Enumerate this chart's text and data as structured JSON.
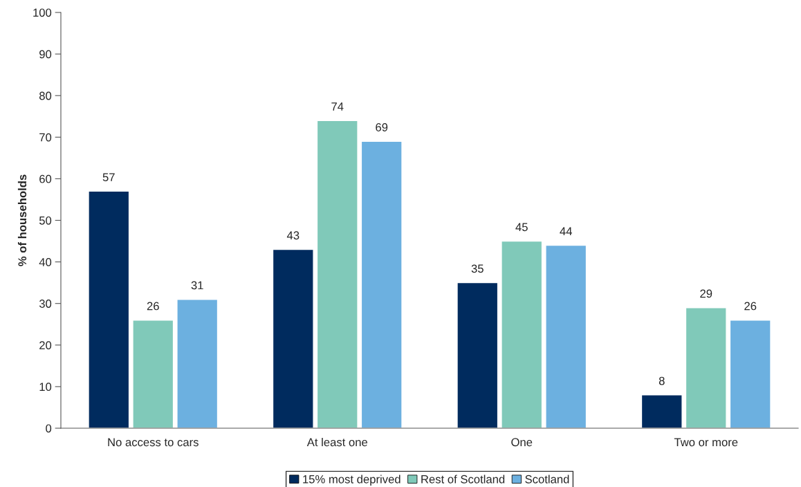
{
  "chart_data": {
    "type": "bar",
    "ylabel": "% of households",
    "categories": [
      "No access to cars",
      "At least one",
      "One",
      "Two or more"
    ],
    "series": [
      {
        "name": "15% most deprived",
        "color": "#002b5e",
        "values": [
          57,
          43,
          35,
          8
        ]
      },
      {
        "name": "Rest of Scotland",
        "color": "#80c9b9",
        "values": [
          26,
          74,
          45,
          29
        ]
      },
      {
        "name": "Scotland",
        "color": "#6cb0e0",
        "values": [
          31,
          69,
          44,
          26
        ]
      }
    ],
    "ylim": [
      0,
      100
    ],
    "yticks": [
      0,
      10,
      20,
      30,
      40,
      50,
      60,
      70,
      80,
      90,
      100
    ],
    "data_labels": true,
    "grid": false,
    "legend": "bottom"
  }
}
